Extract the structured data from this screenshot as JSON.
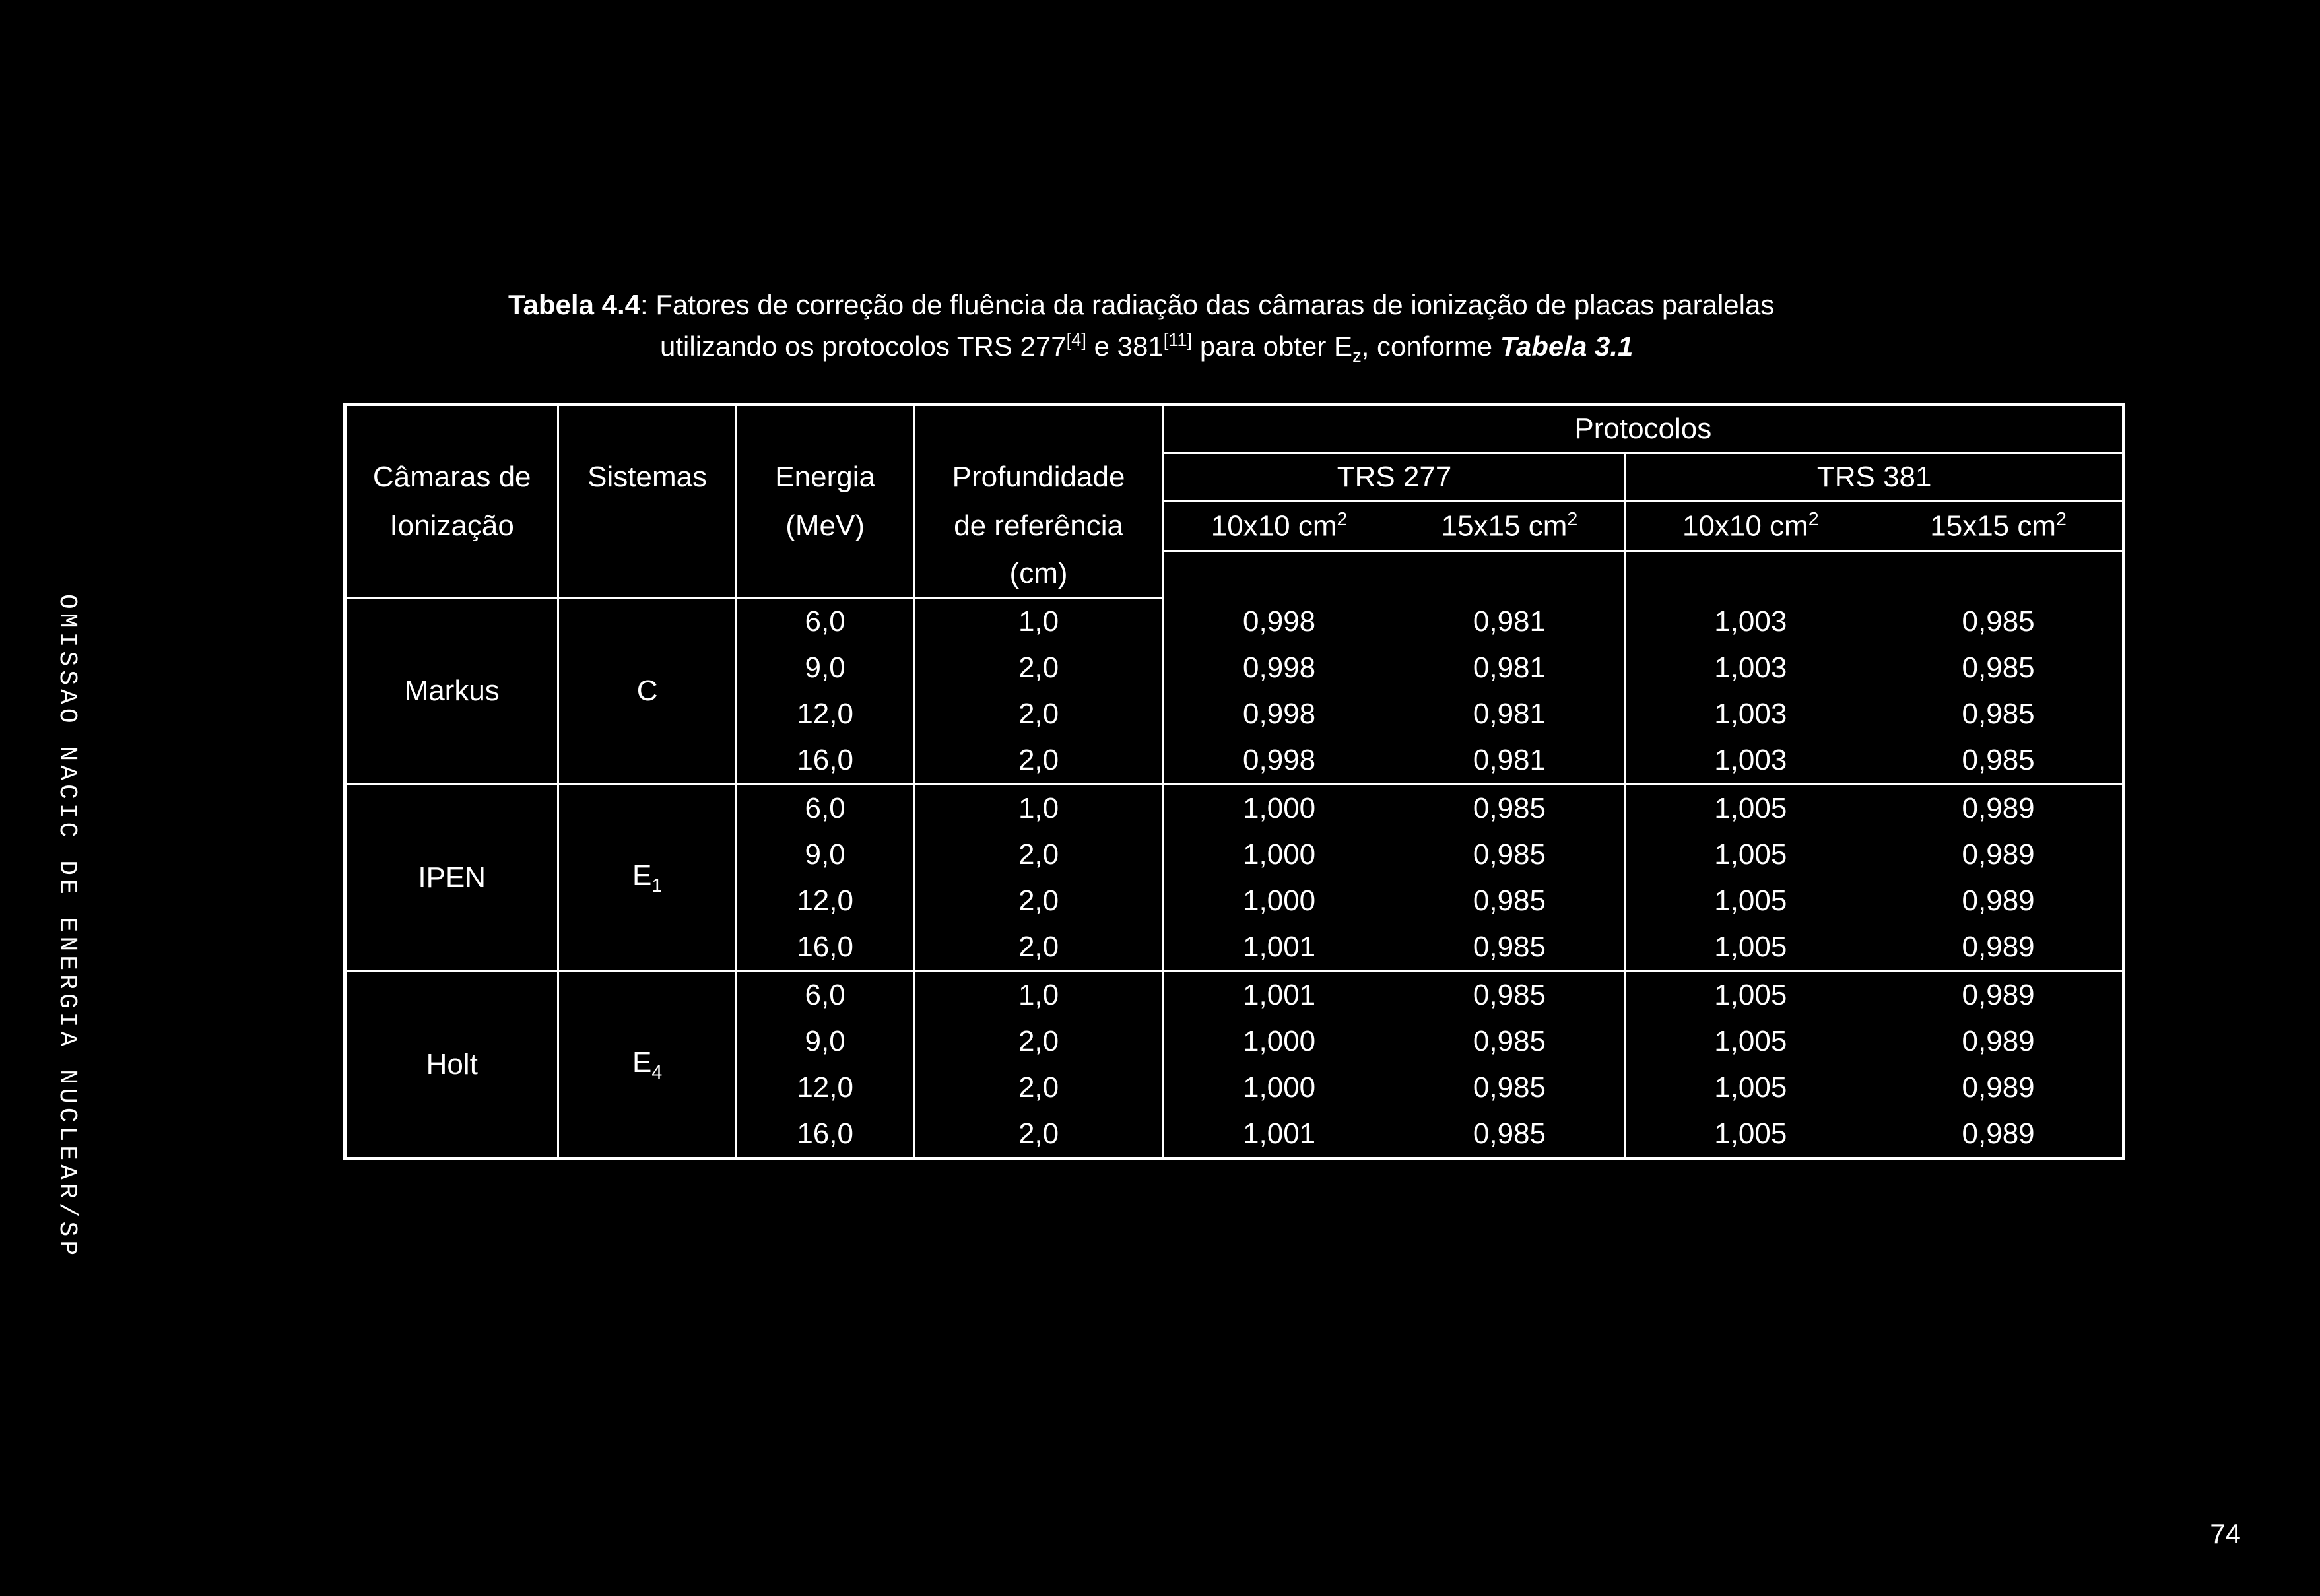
{
  "sidebar": "OMISSAO NACIC  DE ENERGIA NUCLEAR/SP",
  "caption": {
    "label_bold": "Tabela 4.4",
    "text_line1_a": ": Fatores de correção de fluência da radiação das câmaras de ionização de placas paralelas",
    "text_line2_a": "utilizando os protocolos TRS 277",
    "sup1": "[4]",
    "text_line2_b": " e 381",
    "sup2": "[11]",
    "text_line2_c": " para obter E",
    "sub1": "z",
    "text_line2_d": ", conforme ",
    "ref_bold": "Tabela 3.1"
  },
  "headers": {
    "protocolos": "Protocolos",
    "camaras": "Câmaras de",
    "ionizacao": "Ionização",
    "sistemas": "Sistemas",
    "energia": "Energia",
    "mev": "(MeV)",
    "profundidade": "Profundidade",
    "referencia": "de referência",
    "cm": "(cm)",
    "trs277": "TRS 277",
    "trs381": "TRS 381",
    "f10a": "10x10 cm",
    "f15a": "15x15 cm",
    "f10b": "10x10 cm",
    "f15b": "15x15 cm",
    "sq": "2"
  },
  "groups": [
    {
      "camara": "Markus",
      "sistema": "C",
      "rows": [
        {
          "e": "6,0",
          "p": "1,0",
          "a": "0,998",
          "b": "0,981",
          "c": "1,003",
          "d": "0,985"
        },
        {
          "e": "9,0",
          "p": "2,0",
          "a": "0,998",
          "b": "0,981",
          "c": "1,003",
          "d": "0,985"
        },
        {
          "e": "12,0",
          "p": "2,0",
          "a": "0,998",
          "b": "0,981",
          "c": "1,003",
          "d": "0,985"
        },
        {
          "e": "16,0",
          "p": "2,0",
          "a": "0,998",
          "b": "0,981",
          "c": "1,003",
          "d": "0,985"
        }
      ]
    },
    {
      "camara": "IPEN",
      "sistema_base": "E",
      "sistema_sub": "1",
      "rows": [
        {
          "e": "6,0",
          "p": "1,0",
          "a": "1,000",
          "b": "0,985",
          "c": "1,005",
          "d": "0,989"
        },
        {
          "e": "9,0",
          "p": "2,0",
          "a": "1,000",
          "b": "0,985",
          "c": "1,005",
          "d": "0,989"
        },
        {
          "e": "12,0",
          "p": "2,0",
          "a": "1,000",
          "b": "0,985",
          "c": "1,005",
          "d": "0,989"
        },
        {
          "e": "16,0",
          "p": "2,0",
          "a": "1,001",
          "b": "0,985",
          "c": "1,005",
          "d": "0,989"
        }
      ]
    },
    {
      "camara": "Holt",
      "sistema_base": "E",
      "sistema_sub": "4",
      "rows": [
        {
          "e": "6,0",
          "p": "1,0",
          "a": "1,001",
          "b": "0,985",
          "c": "1,005",
          "d": "0,989"
        },
        {
          "e": "9,0",
          "p": "2,0",
          "a": "1,000",
          "b": "0,985",
          "c": "1,005",
          "d": "0,989"
        },
        {
          "e": "12,0",
          "p": "2,0",
          "a": "1,000",
          "b": "0,985",
          "c": "1,005",
          "d": "0,989"
        },
        {
          "e": "16,0",
          "p": "2,0",
          "a": "1,001",
          "b": "0,985",
          "c": "1,005",
          "d": "0,989"
        }
      ]
    }
  ],
  "page_number": "74"
}
